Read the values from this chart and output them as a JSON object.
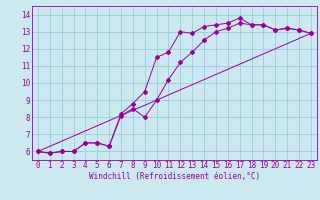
{
  "background_color": "#cce8f0",
  "grid_color": "#99cce0",
  "line_color": "#990099",
  "spine_color": "#660066",
  "xlim": [
    -0.5,
    23.5
  ],
  "ylim": [
    5.5,
    14.5
  ],
  "yticks": [
    6,
    7,
    8,
    9,
    10,
    11,
    12,
    13,
    14
  ],
  "xticks": [
    0,
    1,
    2,
    3,
    4,
    5,
    6,
    7,
    8,
    9,
    10,
    11,
    12,
    13,
    14,
    15,
    16,
    17,
    18,
    19,
    20,
    21,
    22,
    23
  ],
  "xlabel": "Windchill (Refroidissement éolien,°C)",
  "line1_x": [
    0,
    1,
    2,
    3,
    4,
    5,
    6,
    7,
    8,
    9,
    10,
    11,
    12,
    13,
    14,
    15,
    16,
    17,
    18,
    19,
    20,
    21,
    22,
    23
  ],
  "line1_y": [
    6.0,
    5.9,
    6.0,
    6.0,
    6.5,
    6.5,
    6.3,
    8.2,
    8.8,
    9.5,
    11.5,
    11.8,
    13.0,
    12.9,
    13.3,
    13.4,
    13.5,
    13.8,
    13.4,
    13.4,
    13.1,
    13.2,
    13.1,
    12.9
  ],
  "line2_x": [
    0,
    1,
    2,
    3,
    4,
    5,
    6,
    7,
    8,
    9,
    10,
    11,
    12,
    13,
    14,
    15,
    16,
    17,
    18,
    19,
    20,
    21,
    22,
    23
  ],
  "line2_y": [
    6.0,
    5.9,
    6.0,
    6.0,
    6.5,
    6.5,
    6.3,
    8.1,
    8.5,
    8.0,
    9.0,
    10.2,
    11.2,
    11.8,
    12.5,
    13.0,
    13.2,
    13.5,
    13.4,
    13.4,
    13.1,
    13.2,
    13.1,
    12.9
  ],
  "line3_x": [
    0,
    23
  ],
  "line3_y": [
    6.0,
    12.9
  ],
  "tick_fontsize": 5.5,
  "xlabel_fontsize": 5.5
}
